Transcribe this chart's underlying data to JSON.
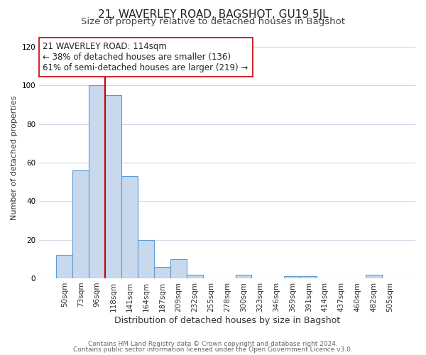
{
  "title": "21, WAVERLEY ROAD, BAGSHOT, GU19 5JL",
  "subtitle": "Size of property relative to detached houses in Bagshot",
  "xlabel": "Distribution of detached houses by size in Bagshot",
  "ylabel": "Number of detached properties",
  "bar_labels": [
    "50sqm",
    "73sqm",
    "96sqm",
    "118sqm",
    "141sqm",
    "164sqm",
    "187sqm",
    "209sqm",
    "232sqm",
    "255sqm",
    "278sqm",
    "300sqm",
    "323sqm",
    "346sqm",
    "369sqm",
    "391sqm",
    "414sqm",
    "437sqm",
    "460sqm",
    "482sqm",
    "505sqm"
  ],
  "bar_values": [
    12,
    56,
    100,
    95,
    53,
    20,
    6,
    10,
    2,
    0,
    0,
    2,
    0,
    0,
    1,
    1,
    0,
    0,
    0,
    2,
    0
  ],
  "bar_color": "#c8d9ee",
  "bar_edge_color": "#5b9bd5",
  "vline_x_index": 2,
  "vline_color": "#cc0000",
  "annotation_text": "21 WAVERLEY ROAD: 114sqm\n← 38% of detached houses are smaller (136)\n61% of semi-detached houses are larger (219) →",
  "annotation_box_color": "#ffffff",
  "annotation_box_edge": "#cc0000",
  "ylim": [
    0,
    125
  ],
  "yticks": [
    0,
    20,
    40,
    60,
    80,
    100,
    120
  ],
  "footer_line1": "Contains HM Land Registry data © Crown copyright and database right 2024.",
  "footer_line2": "Contains public sector information licensed under the Open Government Licence v3.0.",
  "bg_color": "#ffffff",
  "grid_color": "#d0d8e8",
  "title_fontsize": 11,
  "subtitle_fontsize": 9.5,
  "xlabel_fontsize": 9,
  "ylabel_fontsize": 8,
  "tick_fontsize": 7.5,
  "footer_fontsize": 6.5,
  "annotation_fontsize": 8.5
}
